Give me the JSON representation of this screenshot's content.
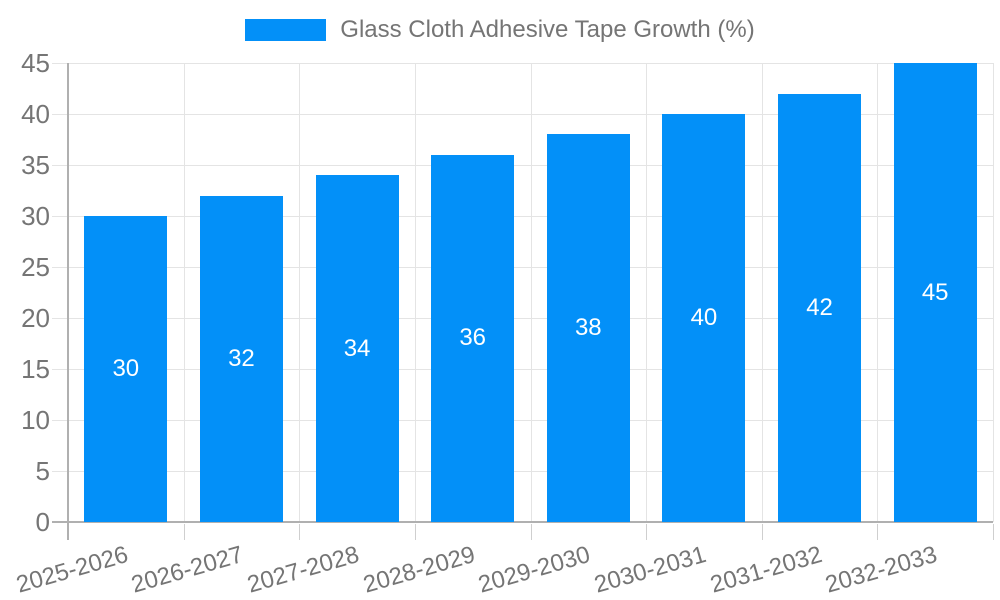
{
  "chart_data": {
    "type": "bar",
    "title": "Glass Cloth Adhesive Tape Growth (%)",
    "categories": [
      "2025-2026",
      "2026-2027",
      "2027-2028",
      "2028-2029",
      "2029-2030",
      "2030-2031",
      "2031-2032",
      "2032-2033"
    ],
    "values": [
      30,
      32,
      34,
      36,
      38,
      40,
      42,
      45
    ],
    "value_labels": [
      "30",
      "32",
      "34",
      "36",
      "38",
      "40",
      "42",
      "45"
    ],
    "xlabel": "",
    "ylabel": "",
    "ylim": [
      0,
      45
    ],
    "ytick_step": 5,
    "yticks": [
      0,
      5,
      10,
      15,
      20,
      25,
      30,
      35,
      40,
      45
    ],
    "grid": true,
    "legend_position": "top-center"
  },
  "colors": {
    "bar": "#0390f8",
    "axis_line": "#b0b0b0",
    "gridline": "#e4e4e4",
    "tick_mark": "#cfcfcf",
    "tick_text": "#757575",
    "bar_value_text": "#ffffff",
    "background": "#ffffff"
  }
}
